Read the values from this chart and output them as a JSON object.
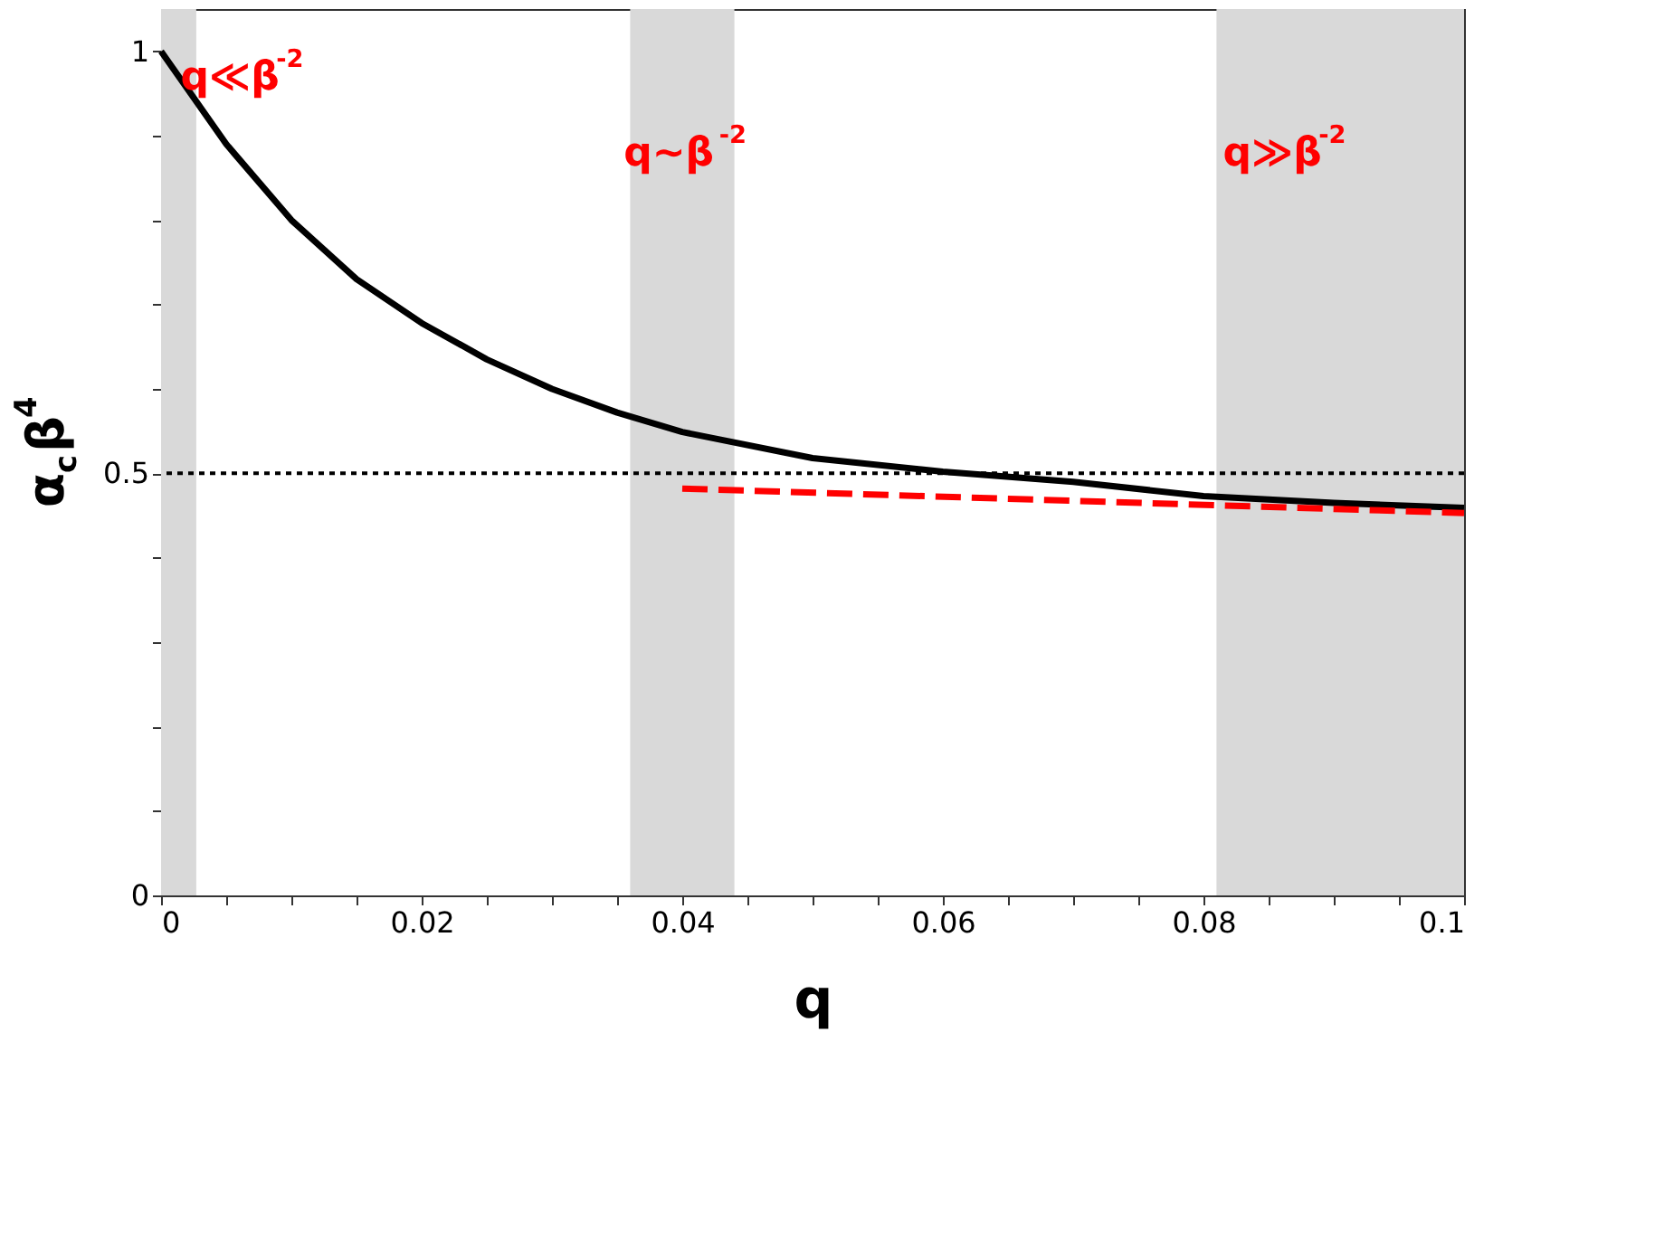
{
  "chart_data": {
    "type": "line",
    "xlabel": "q",
    "ylabel": "α$_{c}$β$^{4}$",
    "xlim": [
      0,
      0.1
    ],
    "ylim": [
      0,
      1.05
    ],
    "xticks": [
      0,
      {
        "value": 0.005,
        "label": null
      },
      {
        "value": 0.01,
        "label": null
      },
      {
        "value": 0.015,
        "label": null
      },
      0.02,
      {
        "value": 0.025,
        "label": null
      },
      {
        "value": 0.03,
        "label": null
      },
      {
        "value": 0.035,
        "label": null
      },
      0.04,
      {
        "value": 0.045,
        "label": null
      },
      {
        "value": 0.05,
        "label": null
      },
      {
        "value": 0.055,
        "label": null
      },
      0.06,
      {
        "value": 0.065,
        "label": null
      },
      {
        "value": 0.07,
        "label": null
      },
      {
        "value": 0.075,
        "label": null
      },
      0.08,
      {
        "value": 0.085,
        "label": null
      },
      {
        "value": 0.09,
        "label": null
      },
      {
        "value": 0.095,
        "label": null
      },
      0.1
    ],
    "yticks": [
      0,
      {
        "value": 0.1,
        "label": null
      },
      {
        "value": 0.2,
        "label": null
      },
      {
        "value": 0.3,
        "label": null
      },
      {
        "value": 0.4,
        "label": null
      },
      0.5,
      {
        "value": 0.6,
        "label": null
      },
      {
        "value": 0.7,
        "label": null
      },
      {
        "value": 0.8,
        "label": null
      },
      {
        "value": 0.9,
        "label": null
      },
      1
    ],
    "grid": false,
    "series": [
      {
        "color": "#000000",
        "line_style": "solid",
        "x": [
          0,
          0.005,
          0.01,
          0.015,
          0.02,
          0.025,
          0.03,
          0.035,
          0.04,
          0.05,
          0.06,
          0.07,
          0.08,
          0.09,
          0.1
        ],
        "values": [
          1.0,
          0.89,
          0.8,
          0.73,
          0.678,
          0.635,
          0.6,
          0.572,
          0.549,
          0.518,
          0.502,
          0.49,
          0.473,
          0.465,
          0.459
        ]
      },
      {
        "color": "#ff0000",
        "line_style": "dashed",
        "x": [
          0.04,
          0.1
        ],
        "values": [
          0.482,
          0.453
        ]
      }
    ],
    "ref_lines": [
      {
        "axis": "y",
        "value": 0.5,
        "color": "#000000",
        "line_style": "dotted"
      }
    ],
    "bands": [
      {
        "axis": "x",
        "from": 0,
        "to": 0.0027,
        "color": "#d9d9d9"
      },
      {
        "axis": "x",
        "from": 0.036,
        "to": 0.044,
        "color": "#d9d9d9"
      },
      {
        "axis": "x",
        "from": 0.081,
        "to": 0.1,
        "color": "#d9d9d9"
      }
    ],
    "annotations": [
      {
        "text": "q≪β$^{-2}$",
        "x": 0.0015,
        "y": 0.97
      },
      {
        "text": "q~β$^{-2}$",
        "x": 0.0355,
        "y": 0.88
      },
      {
        "text": "q≫β$^{-2}$",
        "x": 0.0815,
        "y": 0.88
      }
    ]
  }
}
